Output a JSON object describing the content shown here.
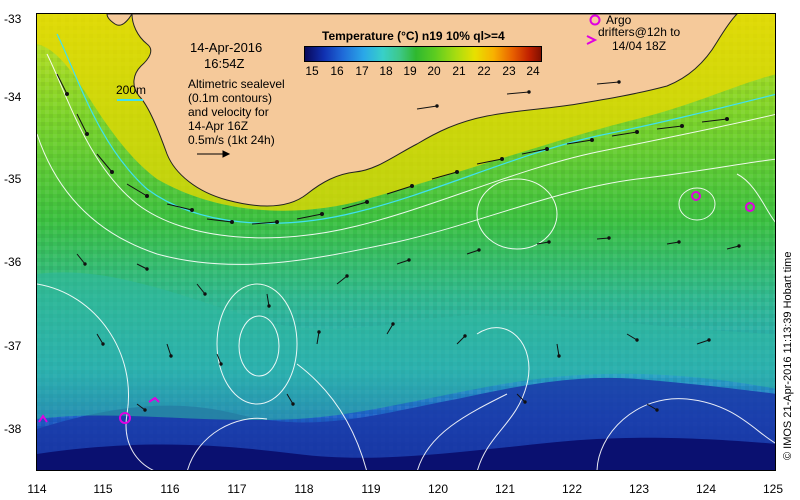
{
  "map": {
    "date_line1": "14-Apr-2016",
    "date_line2": "16:54Z",
    "isobath_label": "200m",
    "altimetry_lines": [
      "Altimetric sealevel",
      "(0.1m contours)",
      "and velocity for",
      "14-Apr 16Z",
      "0.5m/s (1kt 24h)"
    ],
    "colorbar_title": "Temperature (°C) n19 10% ql>=4",
    "colorbar_ticks": [
      "15",
      "16",
      "17",
      "18",
      "19",
      "20",
      "21",
      "22",
      "23",
      "24"
    ],
    "legend_argo": "Argo",
    "legend_drifters_lines": [
      "drifters@12h to",
      "14/04 18Z"
    ],
    "credit": "© IMOS 21-Apr-2016 11:13:39 Hobart time",
    "y_ticks": [
      "-33",
      "-34",
      "-35",
      "-36",
      "-37",
      "-38"
    ],
    "x_ticks": [
      "114",
      "115",
      "116",
      "117",
      "118",
      "119",
      "120",
      "121",
      "122",
      "123",
      "124",
      "125"
    ],
    "colors": {
      "land": "#f5c99a",
      "ocean_warm": "#7dd32a",
      "ocean_cool": "#2fb8a0",
      "ocean_cold": "#1a3aa8",
      "coast_warm": "#e8d800",
      "marker": "#e000e0"
    },
    "icons": {
      "argo_marker": "magenta-circle-icon",
      "drifter_marker": "magenta-chevron-icon"
    }
  }
}
